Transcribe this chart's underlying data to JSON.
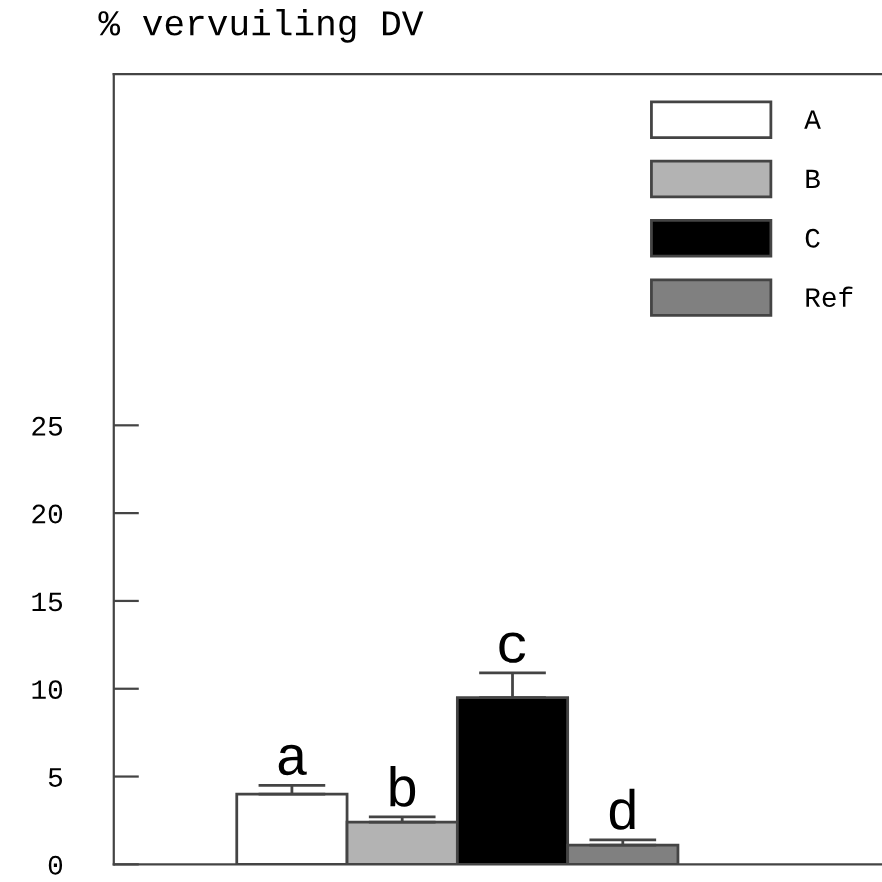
{
  "chart_data": {
    "type": "bar",
    "title": "% vervuiling DV",
    "categories": [
      null
    ],
    "series": [
      {
        "name": "A",
        "color": "#ffffff",
        "values": [
          4.0
        ],
        "errors": [
          [
            4.0,
            4.5
          ]
        ]
      },
      {
        "name": "B",
        "color": "#b3b3b3",
        "values": [
          2.4
        ],
        "errors": [
          [
            2.4,
            2.7
          ]
        ]
      },
      {
        "name": "C",
        "color": "#000000",
        "values": [
          9.5
        ],
        "errors": [
          [
            9.5,
            10.9
          ]
        ]
      },
      {
        "name": "Ref",
        "color": "#808080",
        "values": [
          1.1
        ],
        "errors": [
          [
            1.1,
            1.4
          ]
        ]
      }
    ],
    "annotations": [
      "a",
      "b",
      "c",
      "d"
    ],
    "ylim": [
      0,
      45
    ],
    "yticks": [
      0,
      5,
      10,
      15,
      20,
      25
    ],
    "legend": "top right",
    "grid": false
  }
}
